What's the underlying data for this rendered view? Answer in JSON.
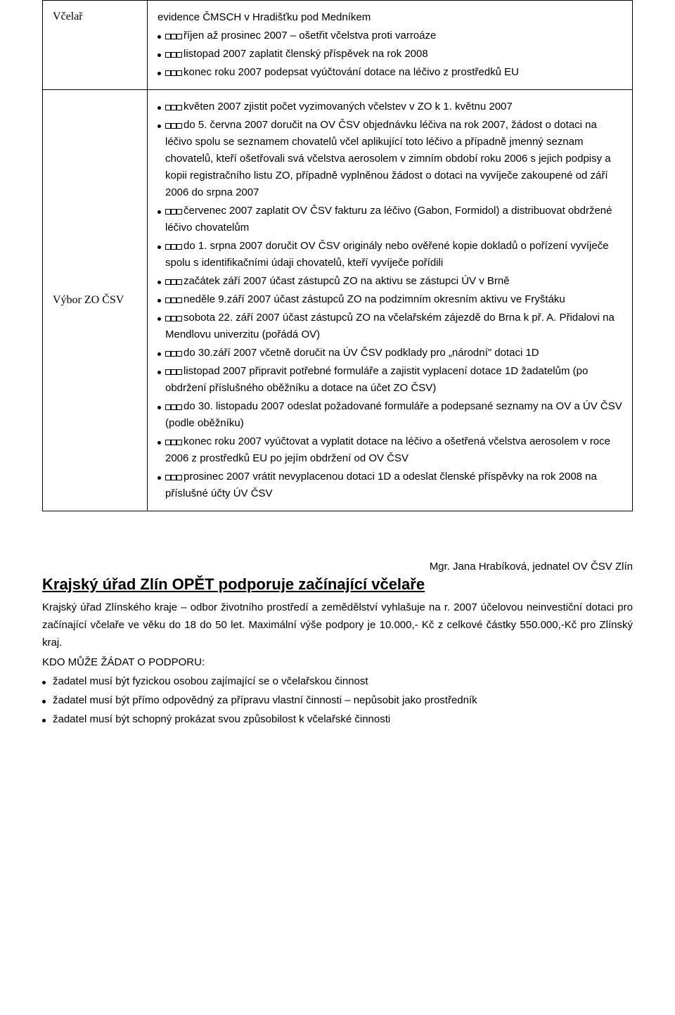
{
  "table": {
    "row1": {
      "left": "Včelař",
      "lines": [
        {
          "type": "plain",
          "text": "evidence ČMSCH v Hradišťku pod Medníkem"
        },
        {
          "type": "bullet",
          "text": "říjen až prosinec 2007 – ošetřit včelstva proti varroáze"
        },
        {
          "type": "bullet",
          "text": "listopad 2007 zaplatit členský příspěvek na rok 2008"
        },
        {
          "type": "bullet",
          "text": "konec roku 2007 podepsat vyúčtování dotace na léčivo z prostředků EU"
        }
      ]
    },
    "row2": {
      "left": "Výbor ZO ČSV",
      "lines": [
        {
          "type": "bullet",
          "text": "květen 2007 zjistit počet vyzimovaných včelstev v ZO k 1. květnu 2007"
        },
        {
          "type": "bullet",
          "text": "do 5. června 2007 doručit na OV ČSV objednávku léčiva na rok 2007, žádost o dotaci na léčivo spolu se seznamem chovatelů včel aplikující toto léčivo a případně jmenný seznam chovatelů, kteří ošetřovali svá včelstva aerosolem v zimním období roku  2006 s jejich podpisy a kopii registračního listu ZO, případně vyplněnou žádost o dotaci na vyvíječe zakoupené od září 2006 do srpna 2007"
        },
        {
          "type": "bullet",
          "text": "červenec 2007 zaplatit OV ČSV fakturu za léčivo (Gabon, Formidol) a distribuovat obdržené léčivo chovatelům"
        },
        {
          "type": "bullet",
          "text": "do 1. srpna 2007 doručit OV ČSV originály nebo ověřené kopie dokladů o pořízení vyvíječe spolu s identifikačními údaji chovatelů, kteří vyvíječe pořídili"
        },
        {
          "type": "bullet",
          "text": "začátek září 2007 účast zástupců ZO na aktivu se zástupci ÚV v Brně"
        },
        {
          "type": "bullet",
          "text": "neděle 9.září 2007 účast zástupců ZO na podzimním okresním aktivu ve Fryštáku"
        },
        {
          "type": "bullet",
          "text": "sobota 22. září 2007 účast zástupců ZO na včelařském zájezdě do Brna k př. A. Přidalovi na Mendlovu univerzitu (pořádá OV)"
        },
        {
          "type": "bullet",
          "text": "do 30.září 2007 včetně doručit na ÚV ČSV podklady pro „národní\" dotaci 1D"
        },
        {
          "type": "bullet",
          "text": "listopad 2007 připravit potřebné formuláře a zajistit vyplacení dotace 1D žadatelům (po obdržení příslušného oběžníku a dotace na účet ZO ČSV)"
        },
        {
          "type": "bullet",
          "text": "do 30. listopadu 2007 odeslat požadované formuláře a podepsané seznamy na OV a ÚV ČSV (podle oběžníku)"
        },
        {
          "type": "bullet",
          "text": "konec roku 2007 vyúčtovat a vyplatit dotace na léčivo a ošetřená včelstva aerosolem v roce 2006 z prostředků EU po jejím obdržení od OV ČSV"
        },
        {
          "type": "bullet",
          "text": "prosinec 2007 vrátit nevyplacenou dotaci 1D a odeslat členské příspěvky na rok 2008 na příslušné účty ÚV ČSV"
        }
      ]
    }
  },
  "signature": "Mgr. Jana Hrabíková, jednatel OV ČSV Zlín",
  "section": {
    "title": "Krajský úřad Zlín OPĚT podporuje začínající včelaře",
    "para": "Krajský úřad Zlínského kraje – odbor životního prostředí a zemědělství vyhlašuje na r. 2007 účelovou neinvestiční dotaci pro začínající včelaře ve věku do 18 do 50 let. Maximální výše podpory je 10.000,- Kč z celkové částky 550.000,-Kč pro Zlínský kraj.",
    "subheading": "KDO MŮŽE ŽÁDAT O PODPORU:",
    "bullets": [
      "žadatel musí být fyzickou osobou zajímající se o včelařskou činnost",
      "žadatel musí být přímo odpovědný za přípravu vlastní činnosti – nepůsobit jako prostředník",
      "žadatel musí být schopný prokázat svou způsobilost k včelařské činnosti"
    ]
  }
}
